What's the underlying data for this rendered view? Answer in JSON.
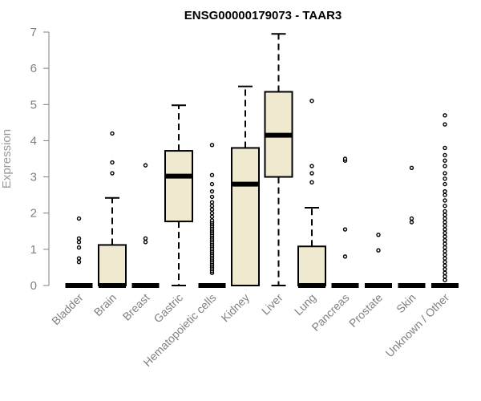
{
  "chart_data": {
    "type": "boxplot",
    "title": "ENSG00000179073 - TAAR3",
    "xlabel": "",
    "ylabel": "Expression",
    "ylim": [
      0,
      7
    ],
    "yticks": [
      0,
      1,
      2,
      3,
      4,
      5,
      6,
      7
    ],
    "categories": [
      "Bladder",
      "Brain",
      "Breast",
      "Gastric",
      "Hematopoietic cells",
      "Kidney",
      "Liver",
      "Lung",
      "Pancreas",
      "Prostate",
      "Skin",
      "Unknown / Other"
    ],
    "boxes": [
      {
        "q1": 0,
        "median": 0,
        "q3": 0,
        "whisker_low": 0,
        "whisker_high": 0,
        "outliers": [
          0.65,
          0.75,
          1.05,
          1.2,
          1.3,
          1.85
        ]
      },
      {
        "q1": 0,
        "median": 0,
        "q3": 1.12,
        "whisker_low": 0,
        "whisker_high": 2.42,
        "outliers": [
          3.1,
          3.4,
          4.2
        ]
      },
      {
        "q1": 0,
        "median": 0,
        "q3": 0,
        "whisker_low": 0,
        "whisker_high": 0,
        "outliers": [
          1.2,
          1.3,
          3.32
        ]
      },
      {
        "q1": 1.77,
        "median": 3.02,
        "q3": 3.72,
        "whisker_low": 0,
        "whisker_high": 4.98,
        "outliers": []
      },
      {
        "q1": 0,
        "median": 0,
        "q3": 0,
        "whisker_low": 0,
        "whisker_high": 0,
        "outliers": [
          0.35,
          0.4,
          0.45,
          0.5,
          0.55,
          0.6,
          0.65,
          0.7,
          0.75,
          0.8,
          0.85,
          0.9,
          0.95,
          1.0,
          1.05,
          1.1,
          1.15,
          1.2,
          1.25,
          1.3,
          1.35,
          1.4,
          1.45,
          1.5,
          1.55,
          1.6,
          1.65,
          1.7,
          1.75,
          1.8,
          1.9,
          2.0,
          2.1,
          2.2,
          2.3,
          2.45,
          2.6,
          2.8,
          3.05,
          3.88
        ]
      },
      {
        "q1": 0,
        "median": 2.8,
        "q3": 3.8,
        "whisker_low": 0,
        "whisker_high": 5.5,
        "outliers": []
      },
      {
        "q1": 3.0,
        "median": 4.15,
        "q3": 5.35,
        "whisker_low": 0,
        "whisker_high": 6.95,
        "outliers": []
      },
      {
        "q1": 0,
        "median": 0,
        "q3": 1.08,
        "whisker_low": 0,
        "whisker_high": 2.15,
        "outliers": [
          2.85,
          3.1,
          3.3,
          5.1
        ]
      },
      {
        "q1": 0,
        "median": 0,
        "q3": 0,
        "whisker_low": 0,
        "whisker_high": 0,
        "outliers": [
          0.8,
          1.55,
          3.45,
          3.5
        ]
      },
      {
        "q1": 0,
        "median": 0,
        "q3": 0,
        "whisker_low": 0,
        "whisker_high": 0,
        "outliers": [
          0.97,
          1.4
        ]
      },
      {
        "q1": 0,
        "median": 0,
        "q3": 0,
        "whisker_low": 0,
        "whisker_high": 0,
        "outliers": [
          1.75,
          1.85,
          3.25
        ]
      },
      {
        "q1": 0,
        "median": 0,
        "q3": 0,
        "whisker_low": 0,
        "whisker_high": 0,
        "outliers": [
          0.15,
          0.25,
          0.35,
          0.45,
          0.55,
          0.65,
          0.75,
          0.85,
          0.95,
          1.05,
          1.15,
          1.25,
          1.35,
          1.45,
          1.55,
          1.65,
          1.75,
          1.85,
          1.95,
          2.05,
          2.2,
          2.35,
          2.5,
          2.6,
          2.8,
          2.95,
          3.1,
          3.3,
          3.45,
          3.6,
          3.8,
          4.45,
          4.7
        ]
      }
    ]
  }
}
